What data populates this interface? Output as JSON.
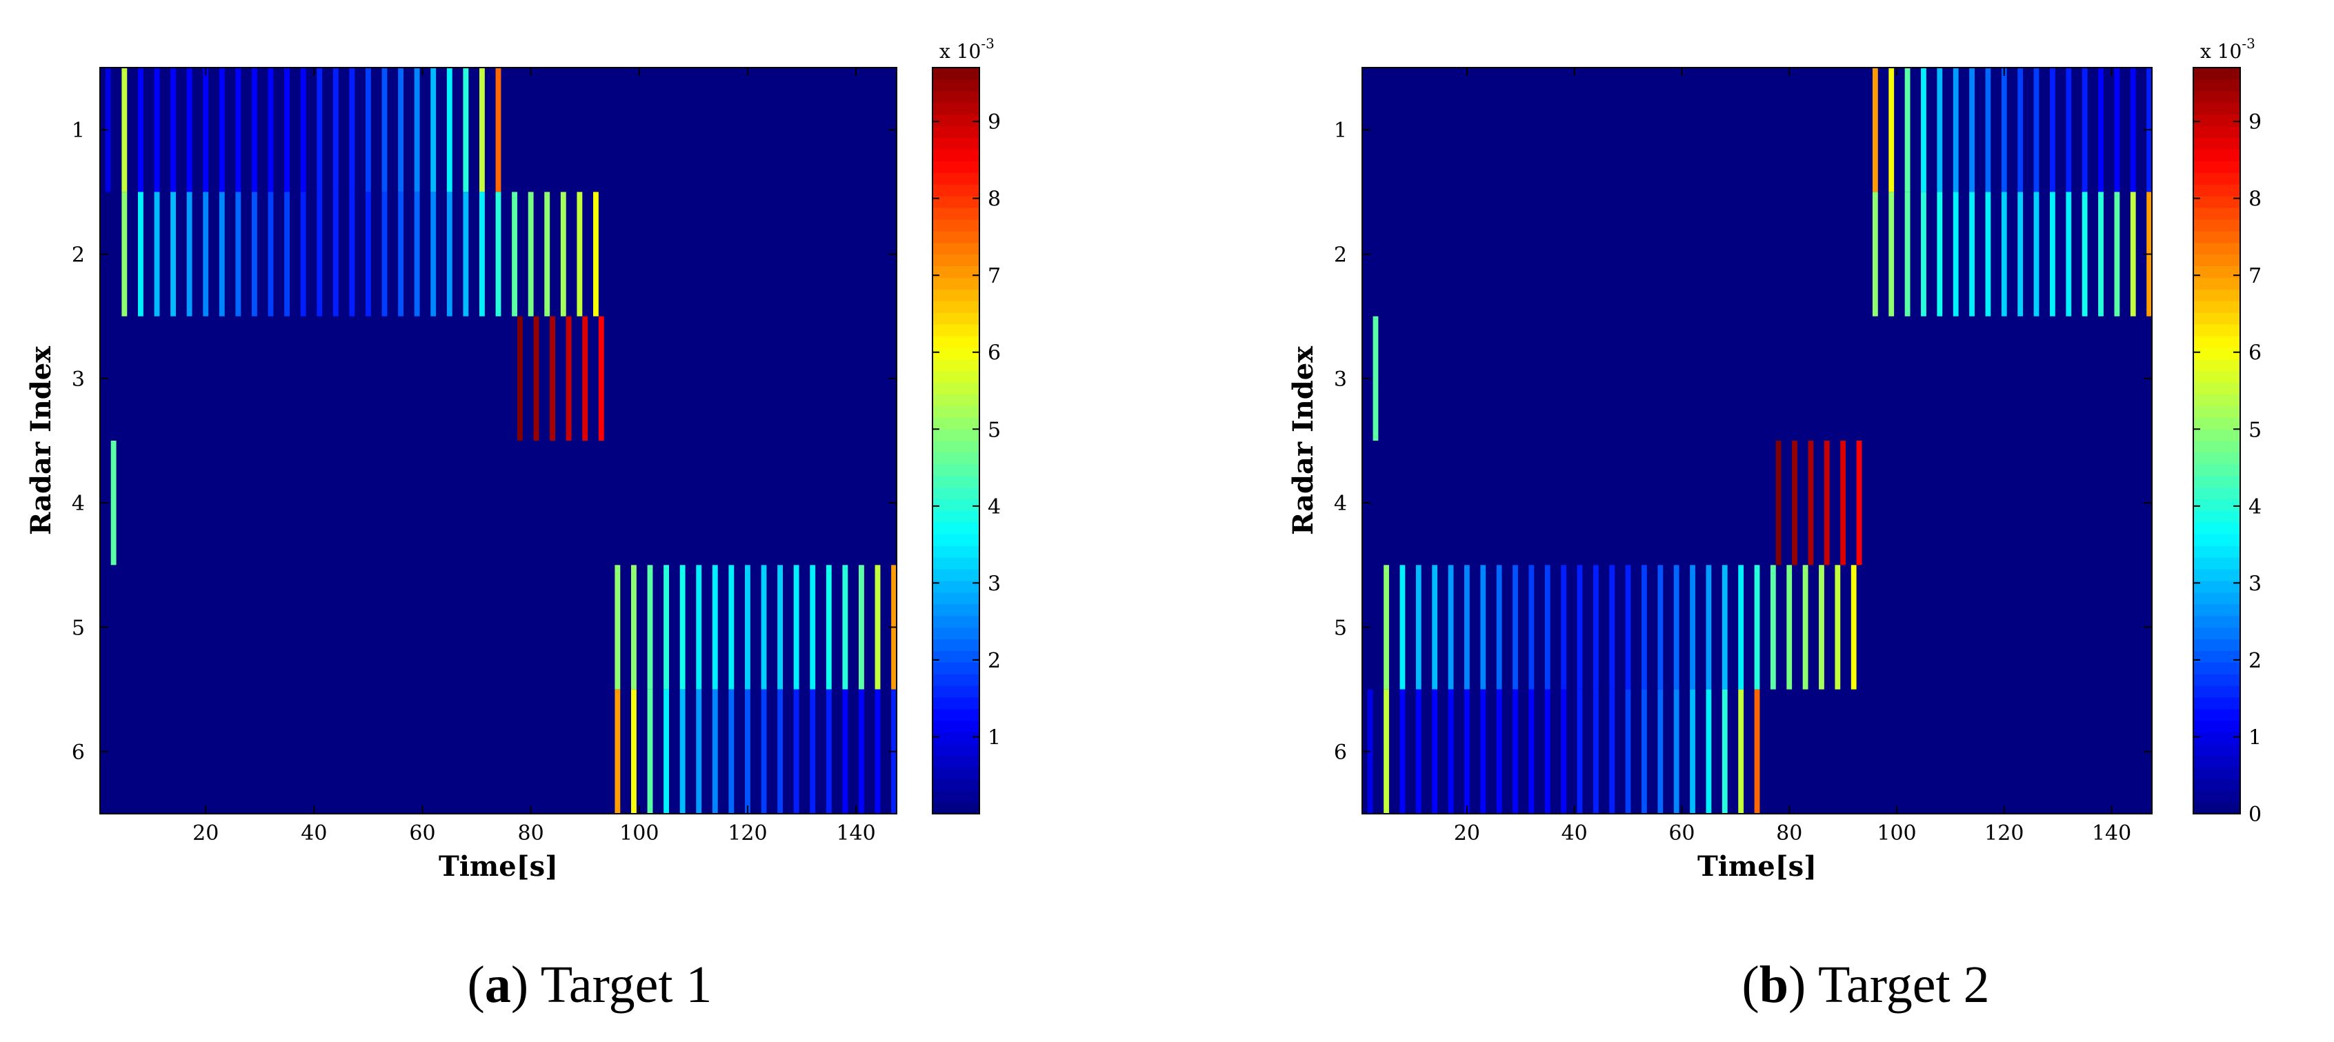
{
  "figure": {
    "captions": [
      {
        "letter": "a",
        "text": "Target 1"
      },
      {
        "letter": "b",
        "text": "Target 2"
      }
    ]
  },
  "chart_data": [
    {
      "type": "heatmap",
      "title": "",
      "xlabel": "Time[s]",
      "ylabel": "Radar Index",
      "xlim": [
        0.5,
        147.5
      ],
      "ylim": [
        0.5,
        6.5
      ],
      "xticks": [
        20,
        40,
        60,
        80,
        100,
        120,
        140
      ],
      "yticks": [
        1,
        2,
        3,
        4,
        5,
        6
      ],
      "colorbar": {
        "ticks": [
          1,
          2,
          3,
          4,
          5,
          6,
          7,
          8,
          9
        ],
        "exponent": "x 10-3",
        "exp_base": "x 10",
        "exp_power": "-3",
        "max": 9.7,
        "show_zero": false
      },
      "background_value": 0,
      "stripes": [
        {
          "radar": 1,
          "t_start": 2,
          "t_end": 76,
          "step": 3,
          "values": [
            1.0,
            5.5,
            1.2,
            1.2,
            1.2,
            1.2,
            1.2,
            1.2,
            1.2,
            1.2,
            1.2,
            1.2,
            1.2,
            1.5,
            1.5,
            1.5,
            1.8,
            2.0,
            2.2,
            2.5,
            3.0,
            3.5,
            4.0,
            5.5,
            7.5,
            9.3
          ]
        },
        {
          "radar": 2,
          "t_start": 5,
          "t_end": 92,
          "step": 3,
          "values": [
            5.0,
            3.5,
            3.0,
            3.0,
            2.7,
            2.5,
            2.5,
            2.2,
            2.0,
            1.8,
            1.8,
            1.5,
            1.5,
            1.5,
            1.5,
            1.5,
            1.8,
            2.0,
            2.2,
            2.5,
            2.7,
            3.0,
            3.5,
            4.0,
            4.5,
            4.8,
            5.0,
            5.2,
            5.5,
            6.0
          ]
        },
        {
          "radar": 3,
          "t_start": 78,
          "t_end": 93,
          "step": 3,
          "values": [
            9.8,
            9.5,
            9.3,
            9.0,
            8.8,
            8.5
          ]
        },
        {
          "radar": 4,
          "t_start": 3,
          "t_end": 3,
          "step": 3,
          "values": [
            4.5
          ]
        },
        {
          "radar": 5,
          "t_start": 96,
          "t_end": 147,
          "step": 3,
          "values": [
            5.0,
            5.0,
            4.5,
            4.0,
            3.8,
            3.5,
            3.5,
            3.5,
            3.2,
            3.2,
            3.2,
            3.5,
            3.5,
            3.8,
            4.0,
            4.5,
            5.5,
            7.0,
            9.5
          ]
        },
        {
          "radar": 6,
          "t_start": 96,
          "t_end": 147,
          "step": 3,
          "values": [
            7.0,
            6.0,
            4.5,
            3.5,
            3.0,
            2.7,
            2.5,
            2.2,
            2.0,
            1.8,
            1.8,
            1.5,
            1.5,
            1.5,
            1.2,
            1.2,
            1.2,
            1.5,
            2.0
          ]
        }
      ]
    },
    {
      "type": "heatmap",
      "title": "",
      "xlabel": "Time[s]",
      "ylabel": "Radar Index",
      "xlim": [
        0.5,
        147.5
      ],
      "ylim": [
        0.5,
        6.5
      ],
      "xticks": [
        20,
        40,
        60,
        80,
        100,
        120,
        140
      ],
      "yticks": [
        1,
        2,
        3,
        4,
        5,
        6
      ],
      "colorbar": {
        "ticks": [
          0,
          1,
          2,
          3,
          4,
          5,
          6,
          7,
          8,
          9
        ],
        "exponent": "x 10-3",
        "exp_base": "x 10",
        "exp_power": "-3",
        "max": 9.7,
        "show_zero": true
      },
      "background_value": 0,
      "stripes": [
        {
          "radar": 1,
          "t_start": 96,
          "t_end": 147,
          "step": 3,
          "values": [
            7.0,
            6.0,
            4.5,
            3.5,
            3.0,
            2.7,
            2.5,
            2.2,
            2.0,
            1.8,
            1.8,
            1.5,
            1.5,
            1.5,
            1.2,
            1.2,
            1.2,
            1.5,
            2.0
          ]
        },
        {
          "radar": 2,
          "t_start": 96,
          "t_end": 147,
          "step": 3,
          "values": [
            5.0,
            5.0,
            4.5,
            4.0,
            3.8,
            3.5,
            3.5,
            3.5,
            3.2,
            3.2,
            3.2,
            3.5,
            3.5,
            3.8,
            4.0,
            4.5,
            5.5,
            7.0,
            9.5
          ]
        },
        {
          "radar": 3,
          "t_start": 3,
          "t_end": 3,
          "step": 3,
          "values": [
            4.5
          ]
        },
        {
          "radar": 4,
          "t_start": 78,
          "t_end": 93,
          "step": 3,
          "values": [
            9.8,
            9.5,
            9.3,
            9.0,
            8.8,
            8.5
          ]
        },
        {
          "radar": 5,
          "t_start": 5,
          "t_end": 92,
          "step": 3,
          "values": [
            5.0,
            3.5,
            3.0,
            3.0,
            2.7,
            2.5,
            2.5,
            2.2,
            2.0,
            1.8,
            1.8,
            1.5,
            1.5,
            1.5,
            1.5,
            1.5,
            1.8,
            2.0,
            2.2,
            2.5,
            2.7,
            3.0,
            3.5,
            4.0,
            4.5,
            4.8,
            5.0,
            5.2,
            5.5,
            6.0
          ]
        },
        {
          "radar": 6,
          "t_start": 2,
          "t_end": 76,
          "step": 3,
          "values": [
            1.0,
            5.5,
            1.2,
            1.2,
            1.2,
            1.2,
            1.2,
            1.2,
            1.2,
            1.2,
            1.2,
            1.2,
            1.2,
            1.5,
            1.5,
            1.5,
            1.8,
            2.0,
            2.2,
            2.5,
            3.0,
            3.5,
            4.0,
            5.5,
            7.5,
            9.3
          ]
        }
      ]
    }
  ]
}
